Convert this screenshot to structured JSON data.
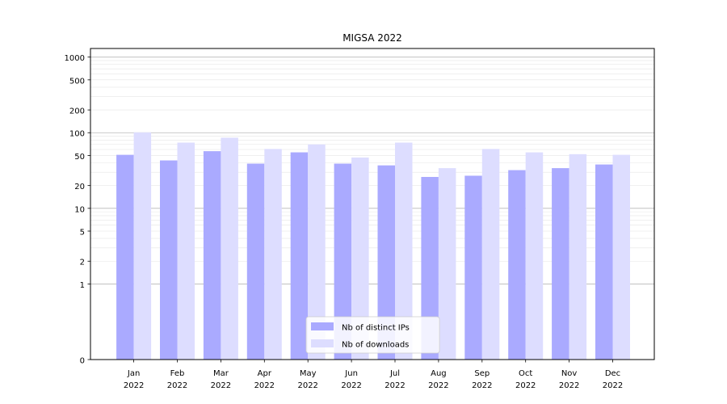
{
  "chart_data": {
    "type": "bar",
    "title": "MIGSA 2022",
    "xlabel": "",
    "ylabel": "",
    "yscale": "symlog",
    "ylim": [
      0,
      1300
    ],
    "yticks": [
      0,
      1,
      2,
      5,
      10,
      20,
      50,
      100,
      200,
      500,
      1000
    ],
    "categories": [
      "Jan\n2022",
      "Feb\n2022",
      "Mar\n2022",
      "Apr\n2022",
      "May\n2022",
      "Jun\n2022",
      "Jul\n2022",
      "Aug\n2022",
      "Sep\n2022",
      "Oct\n2022",
      "Nov\n2022",
      "Dec\n2022"
    ],
    "series": [
      {
        "name": "Nb of distinct IPs",
        "color": "#aaaaff",
        "values": [
          51,
          43,
          57,
          39,
          55,
          39,
          37,
          26,
          27,
          32,
          34,
          38
        ]
      },
      {
        "name": "Nb of downloads",
        "color": "#ddddff",
        "values": [
          101,
          74,
          86,
          61,
          70,
          47,
          74,
          34,
          61,
          55,
          52,
          51
        ]
      }
    ],
    "grid": true,
    "legend_position": "bottom-center"
  }
}
